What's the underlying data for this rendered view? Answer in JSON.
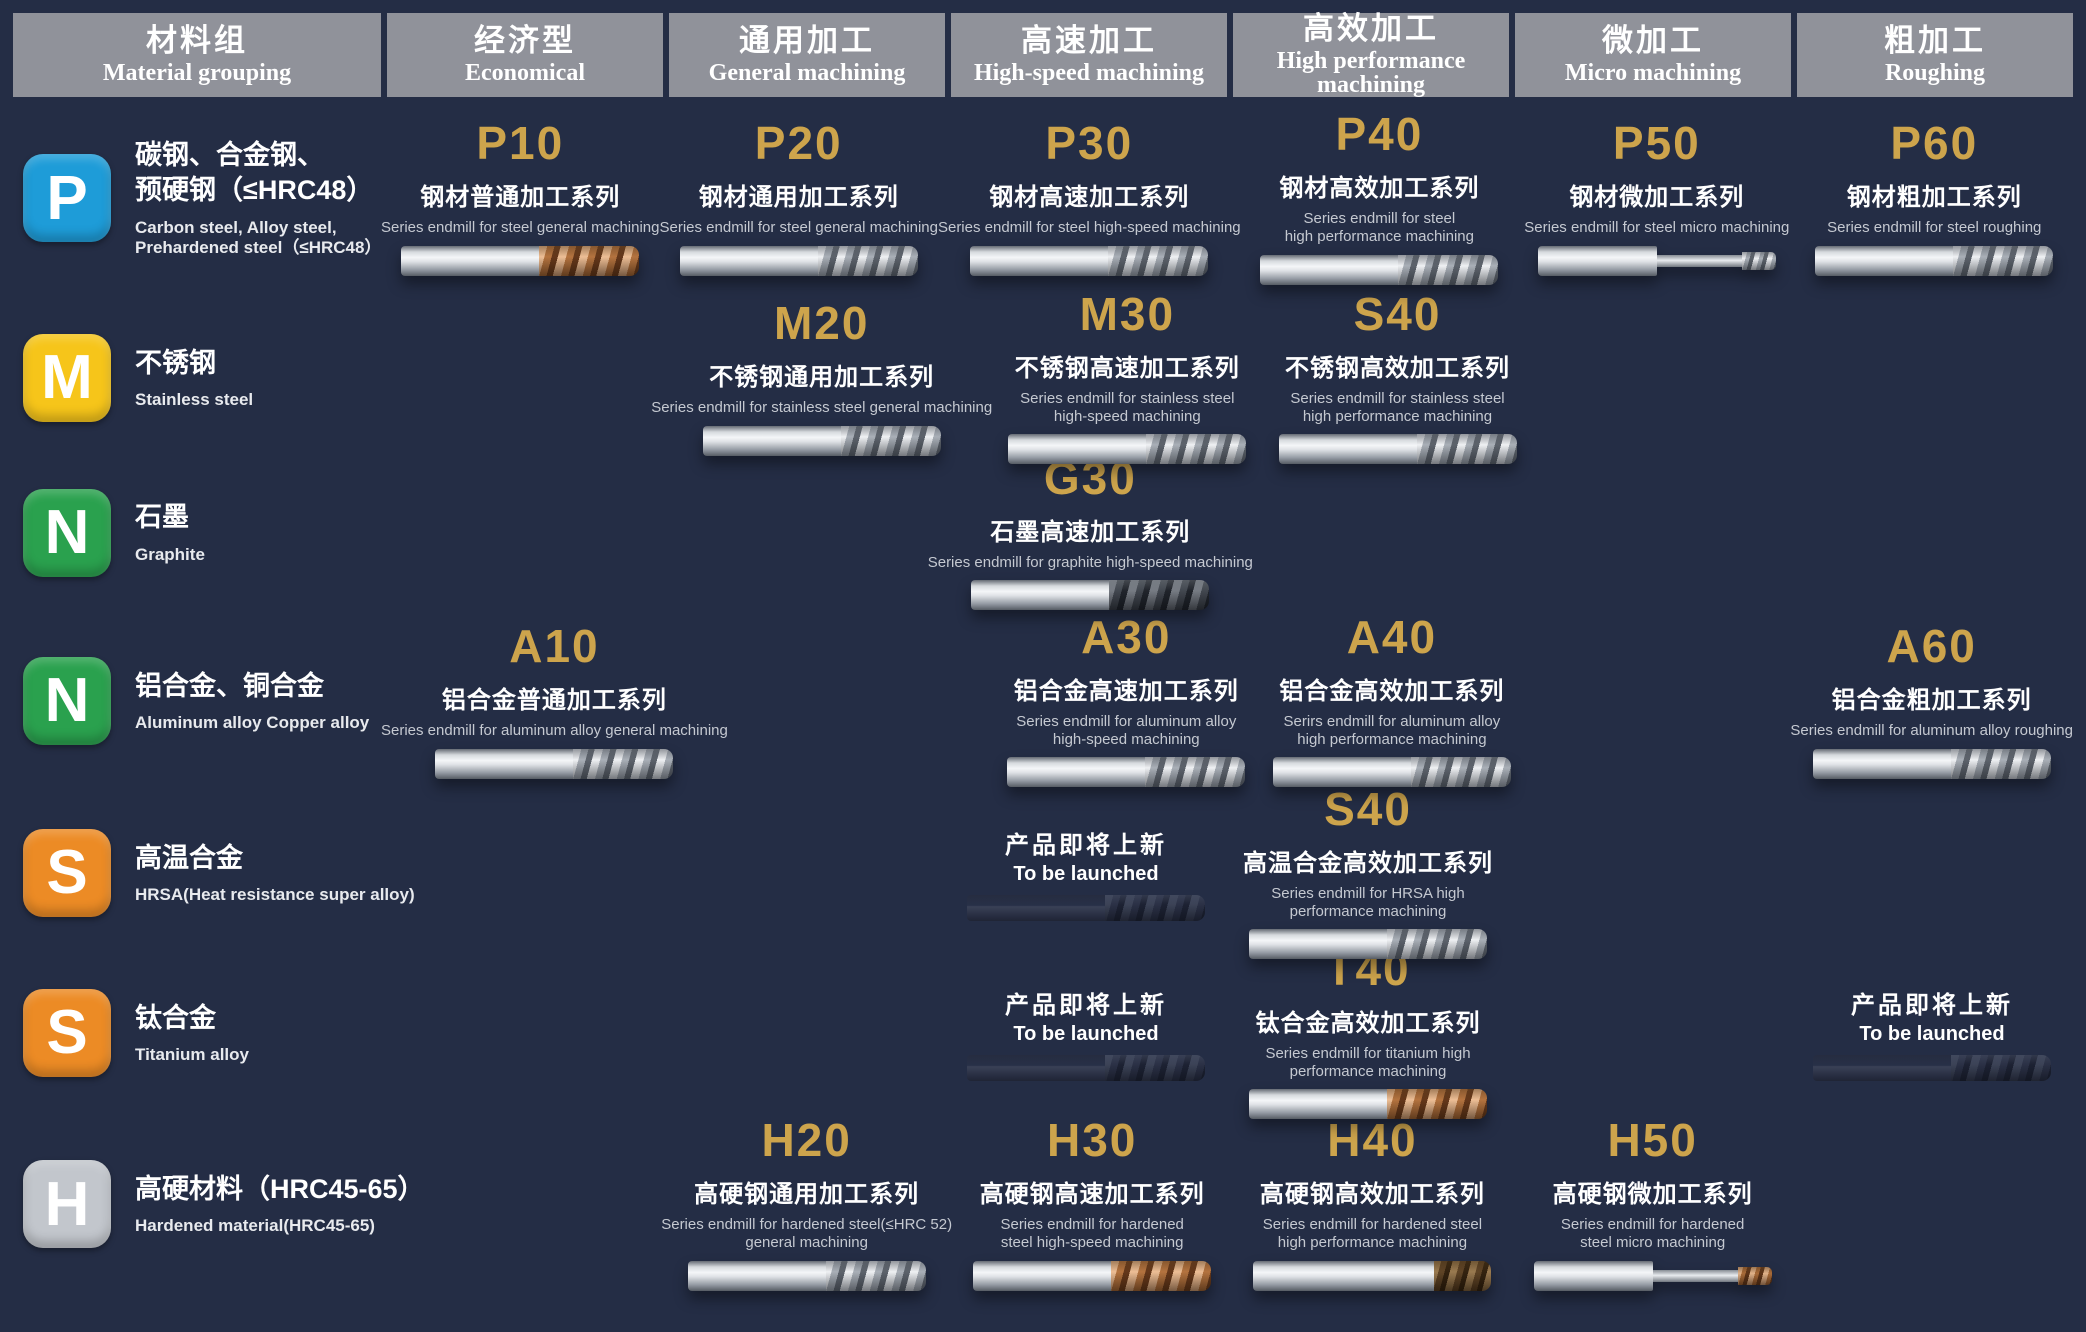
{
  "colors": {
    "background": "#242d45",
    "header_bg": "#90929a",
    "product_code_gold": "#cda44c",
    "badge_p_blue": "#1e9cd8",
    "badge_m_yellow": "#f6c51a",
    "badge_n_green": "#2aa14e",
    "badge_s_orange": "#ec8b25",
    "badge_h_silver": "#c2c6cc"
  },
  "header": {
    "columns": [
      {
        "zh": "材料组",
        "en": "Material grouping"
      },
      {
        "zh": "经济型",
        "en": "Economical"
      },
      {
        "zh": "通用加工",
        "en": "General machining"
      },
      {
        "zh": "高速加工",
        "en": "High-speed machining"
      },
      {
        "zh": "高效加工",
        "en": "High performance machining"
      },
      {
        "zh": "微加工",
        "en": "Micro machining"
      },
      {
        "zh": "粗加工",
        "en": "Roughing"
      }
    ]
  },
  "rows": [
    {
      "group": {
        "letter": "P",
        "zh1": "碳钢、合金钢、",
        "zh2": "预硬钢（≤HRC48）",
        "en1": "Carbon steel, Alloy steel,",
        "en2": "Prehardened steel（≤HRC48）"
      },
      "cells": {
        "economical": {
          "code": "P10",
          "zh": "钢材普通加工系列",
          "en": "Series endmill for steel general machining",
          "endmill": "copper"
        },
        "general": {
          "code": "P20",
          "zh": "钢材通用加工系列",
          "en": "Series endmill for steel general machining",
          "endmill": "silver"
        },
        "highspeed": {
          "code": "P30",
          "zh": "钢材高速加工系列",
          "en": "Series endmill for steel high-speed machining",
          "endmill": "silver"
        },
        "highperf": {
          "code": "P40",
          "zh": "钢材高效加工系列",
          "en": "Series endmill for steel",
          "en2": "high performance machining",
          "endmill": "silver"
        },
        "micro": {
          "code": "P50",
          "zh": "钢材微加工系列",
          "en": "Series endmill for steel micro machining",
          "endmill": "micro"
        },
        "roughing": {
          "code": "P60",
          "zh": "钢材粗加工系列",
          "en": "Series endmill for steel roughing",
          "endmill": "silver"
        }
      }
    },
    {
      "group": {
        "letter": "M",
        "zh1": "不锈钢",
        "en1": "Stainless steel"
      },
      "cells": {
        "general": {
          "code": "M20",
          "zh": "不锈钢通用加工系列",
          "en": "Series endmill for stainless steel general machining",
          "endmill": "silver"
        },
        "highspeed": {
          "code": "M30",
          "zh": "不锈钢高速加工系列",
          "en": "Series endmill for stainless steel",
          "en2": "high-speed machining",
          "endmill": "silver"
        },
        "highperf": {
          "code": "S40",
          "zh": "不锈钢高效加工系列",
          "en": "Series endmill for stainless steel",
          "en2": "high performance machining",
          "endmill": "silver"
        }
      }
    },
    {
      "group": {
        "letter": "N",
        "zh1": "石墨",
        "en1": "Graphite"
      },
      "cells": {
        "highspeed": {
          "code": "G30",
          "zh": "石墨高速加工系列",
          "en": "Series endmill for graphite high-speed machining",
          "endmill": "dark"
        }
      }
    },
    {
      "group": {
        "letter": "N",
        "zh1": "铝合金、铜合金",
        "en1": "Aluminum alloy  Copper alloy"
      },
      "cells": {
        "economical": {
          "code": "A10",
          "zh": "铝合金普通加工系列",
          "en": "Series endmill for aluminum alloy general machining",
          "endmill": "silver"
        },
        "highspeed": {
          "code": "A30",
          "zh": "铝合金高速加工系列",
          "en": "Series endmill for aluminum alloy",
          "en2": "high-speed machining",
          "endmill": "silver"
        },
        "highperf": {
          "code": "A40",
          "zh": "铝合金高效加工系列",
          "en": "Serirs endmill for aluminum alloy",
          "en2": "high performance machining",
          "endmill": "silver"
        },
        "roughing": {
          "code": "A60",
          "zh": "铝合金粗加工系列",
          "en": "Series endmill for aluminum alloy roughing",
          "endmill": "silver"
        }
      }
    },
    {
      "group": {
        "letter": "S",
        "zh1": "高温合金",
        "en1": "HRSA(Heat resistance super alloy)"
      },
      "cells": {
        "highspeed": {
          "launch_zh": "产品即将上新",
          "launch_en": "To be launched",
          "endmill": "ghost"
        },
        "highperf": {
          "code": "S40",
          "zh": "高温合金高效加工系列",
          "en": "Series endmill for HRSA high",
          "en2": "performance machining",
          "endmill": "silver"
        }
      }
    },
    {
      "group": {
        "letter": "S",
        "zh1": "钛合金",
        "en1": "Titanium alloy"
      },
      "cells": {
        "highspeed": {
          "launch_zh": "产品即将上新",
          "launch_en": "To be launched",
          "endmill": "ghost"
        },
        "highperf": {
          "code": "T40",
          "zh": "钛合金高效加工系列",
          "en": "Series endmill for titanium high",
          "en2": "performance machining",
          "endmill": "copper"
        },
        "roughing": {
          "launch_zh": "产品即将上新",
          "launch_en": "To be launched",
          "endmill": "ghost"
        }
      }
    },
    {
      "group": {
        "letter": "H",
        "zh1": "高硬材料（HRC45-65）",
        "en1": "Hardened material(HRC45-65)"
      },
      "cells": {
        "general": {
          "code": "H20",
          "zh": "高硬钢通用加工系列",
          "en": "Series endmill for hardened steel(≤HRC 52)",
          "en2": "general machining",
          "endmill": "silver"
        },
        "highspeed": {
          "code": "H30",
          "zh": "高硬钢高速加工系列",
          "en": "Series endmill for hardened",
          "en2": "steel high-speed machining",
          "endmill": "copper"
        },
        "highperf": {
          "code": "H40",
          "zh": "高硬钢高效加工系列",
          "en": "Series endmill for hardened steel",
          "en2": "high performance machining",
          "endmill": "bronze-tip"
        },
        "micro": {
          "code": "H50",
          "zh": "高硬钢微加工系列",
          "en": "Series endmill for hardened",
          "en2": "steel micro machining",
          "endmill": "micro-copper"
        }
      }
    }
  ]
}
